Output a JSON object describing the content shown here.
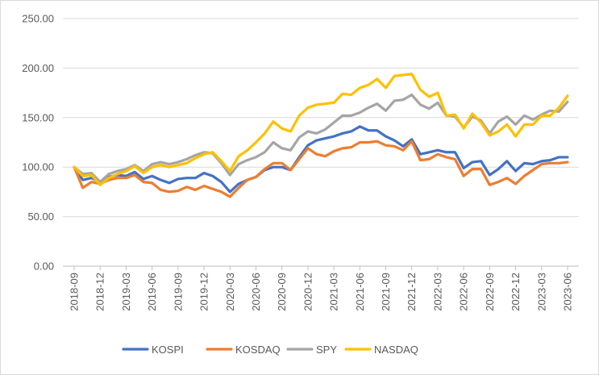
{
  "chart_data": {
    "type": "line",
    "title": "",
    "xlabel": "",
    "ylabel": "",
    "ylim": [
      0,
      250
    ],
    "yticks": [
      "0.00",
      "50.00",
      "100.00",
      "150.00",
      "200.00",
      "250.00"
    ],
    "grid": "horizontal",
    "legend_position": "bottom",
    "xtick_labels": [
      "2018-09",
      "2018-12",
      "2019-03",
      "2019-06",
      "2019-09",
      "2019-12",
      "2020-03",
      "2020-06",
      "2020-09",
      "2020-12",
      "2021-03",
      "2021-06",
      "2021-09",
      "2021-12",
      "2022-03",
      "2022-06",
      "2022-09",
      "2022-12",
      "2023-03",
      "2023-06"
    ],
    "x": [
      "2018-09",
      "2018-10",
      "2018-11",
      "2018-12",
      "2019-01",
      "2019-02",
      "2019-03",
      "2019-04",
      "2019-05",
      "2019-06",
      "2019-07",
      "2019-08",
      "2019-09",
      "2019-10",
      "2019-11",
      "2019-12",
      "2020-01",
      "2020-02",
      "2020-03",
      "2020-04",
      "2020-05",
      "2020-06",
      "2020-07",
      "2020-08",
      "2020-09",
      "2020-10",
      "2020-11",
      "2020-12",
      "2021-01",
      "2021-02",
      "2021-03",
      "2021-04",
      "2021-05",
      "2021-06",
      "2021-07",
      "2021-08",
      "2021-09",
      "2021-10",
      "2021-11",
      "2021-12",
      "2022-01",
      "2022-02",
      "2022-03",
      "2022-04",
      "2022-05",
      "2022-06",
      "2022-07",
      "2022-08",
      "2022-09",
      "2022-10",
      "2022-11",
      "2022-12",
      "2023-01",
      "2023-02",
      "2023-03",
      "2023-04",
      "2023-05",
      "2023-06"
    ],
    "series": [
      {
        "name": "KOSPI",
        "color": "#4472C4",
        "values": [
          100,
          87,
          89,
          85,
          90,
          92,
          91,
          95,
          88,
          91,
          87,
          84,
          88,
          89,
          89,
          94,
          91,
          85,
          75,
          83,
          87,
          90,
          97,
          100,
          100,
          97,
          110,
          122,
          127,
          129,
          131,
          134,
          136,
          141,
          137,
          137,
          131,
          127,
          121,
          128,
          113,
          115,
          117,
          115,
          115,
          99,
          105,
          106,
          92,
          98,
          106,
          96,
          104,
          103,
          106,
          107,
          110,
          110
        ]
      },
      {
        "name": "KOSDAQ",
        "color": "#ED7D31",
        "values": [
          100,
          79,
          85,
          83,
          87,
          89,
          89,
          92,
          85,
          84,
          77,
          75,
          76,
          80,
          77,
          81,
          78,
          75,
          70,
          79,
          87,
          90,
          98,
          104,
          104,
          97,
          108,
          119,
          113,
          111,
          116,
          119,
          120,
          125,
          125,
          126,
          122,
          121,
          117,
          126,
          107,
          108,
          113,
          110,
          108,
          91,
          98,
          98,
          82,
          85,
          89,
          83,
          91,
          97,
          103,
          104,
          104,
          105
        ]
      },
      {
        "name": "SPY",
        "color": "#A5A5A5",
        "values": [
          100,
          93,
          94,
          85,
          93,
          96,
          98,
          102,
          96,
          103,
          105,
          103,
          105,
          108,
          112,
          115,
          114,
          104,
          92,
          103,
          107,
          110,
          115,
          125,
          119,
          117,
          130,
          136,
          134,
          138,
          145,
          152,
          152,
          155,
          160,
          164,
          157,
          167,
          168,
          173,
          163,
          159,
          165,
          152,
          151,
          140,
          151,
          147,
          134,
          146,
          151,
          143,
          152,
          148,
          153,
          157,
          156,
          166
        ]
      },
      {
        "name": "NASDAQ",
        "color": "#FFC000",
        "values": [
          100,
          91,
          92,
          82,
          89,
          93,
          96,
          101,
          94,
          100,
          102,
          100,
          102,
          104,
          109,
          113,
          115,
          106,
          96,
          111,
          117,
          125,
          134,
          146,
          139,
          136,
          152,
          160,
          163,
          164,
          165,
          174,
          173,
          180,
          183,
          189,
          180,
          192,
          193,
          194,
          178,
          171,
          175,
          152,
          153,
          139,
          154,
          145,
          132,
          136,
          143,
          131,
          143,
          143,
          152,
          152,
          160,
          172
        ]
      }
    ]
  }
}
